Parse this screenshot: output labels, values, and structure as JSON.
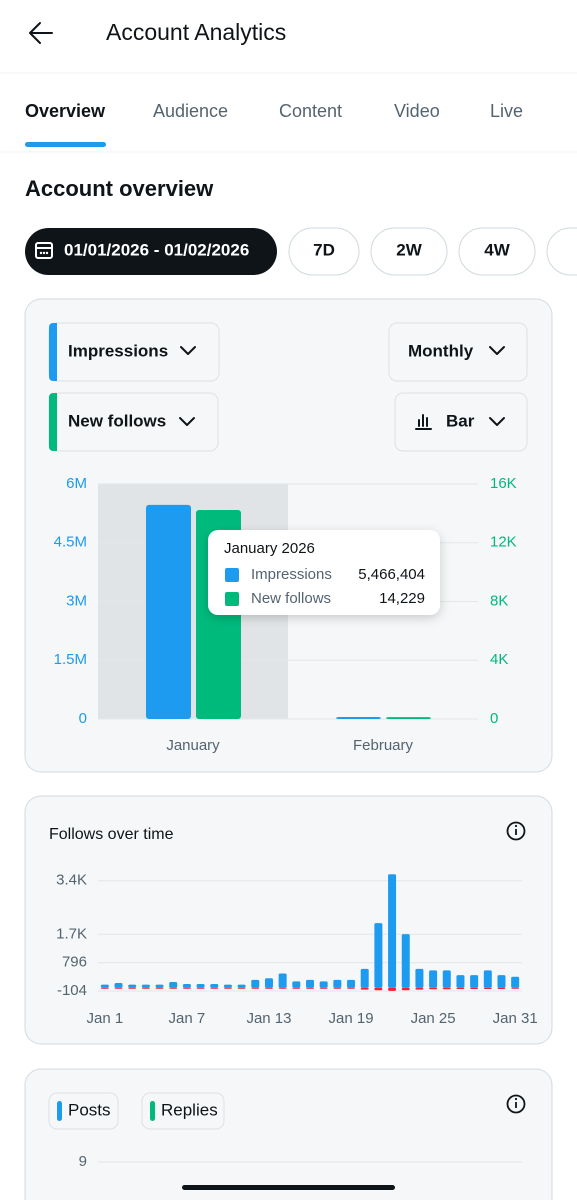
{
  "header": {
    "title": "Account Analytics"
  },
  "tabs": [
    "Overview",
    "Audience",
    "Content",
    "Video",
    "Live"
  ],
  "section_title": "Account overview",
  "date_range": "01/01/2026 - 01/02/2026",
  "range_options": [
    "7D",
    "2W",
    "4W"
  ],
  "controls": {
    "metric_1": "Impressions",
    "metric_2": "New follows",
    "period": "Monthly",
    "chart_style": "Bar"
  },
  "chart_data": [
    {
      "type": "bar",
      "categories": [
        "January",
        "February"
      ],
      "series": [
        {
          "name": "Impressions",
          "color": "#1d9bf0",
          "values": [
            5466404,
            50000
          ],
          "value_labels": [
            "5,466,404",
            null
          ]
        },
        {
          "name": "New follows",
          "color": "#00ba7c",
          "values": [
            14229,
            130
          ],
          "value_labels": [
            "14,229",
            null
          ],
          "axis": "y2"
        }
      ],
      "ylim": [
        0,
        6000000
      ],
      "yticks": [
        0,
        {
          "value": 1500000,
          "label": "1.5M"
        },
        {
          "value": 3000000,
          "label": "3M"
        },
        {
          "value": 4500000,
          "label": "4.5M"
        },
        {
          "value": 6000000,
          "label": "6M"
        }
      ],
      "y2lim": [
        0,
        16000
      ],
      "y2ticks": [
        0,
        {
          "value": 4000,
          "label": "4K"
        },
        {
          "value": 8000,
          "label": "8K"
        },
        {
          "value": 12000,
          "label": "12K"
        },
        {
          "value": 16000,
          "label": "16K"
        }
      ],
      "tooltip_title": "January 2026",
      "grid": true
    },
    {
      "type": "bar",
      "title": "Follows over time",
      "categories": [
        "Jan 1",
        null,
        null,
        null,
        null,
        null,
        "Jan 7",
        null,
        null,
        null,
        null,
        null,
        "Jan 13",
        null,
        null,
        null,
        null,
        null,
        "Jan 19",
        null,
        null,
        null,
        null,
        null,
        "Jan 25",
        null,
        null,
        null,
        null,
        null,
        "Jan 31"
      ],
      "series": [
        {
          "color": "#1d9bf0",
          "values": [
            100,
            150,
            100,
            100,
            100,
            180,
            120,
            120,
            120,
            100,
            100,
            250,
            300,
            450,
            200,
            250,
            200,
            250,
            250,
            600,
            2050,
            3600,
            1700,
            600,
            550,
            550,
            400,
            400,
            550,
            400,
            350
          ]
        },
        {
          "color": "#f4212e",
          "values": [
            -20,
            -20,
            -20,
            -20,
            -20,
            -20,
            -20,
            -20,
            -20,
            -20,
            -20,
            -20,
            -20,
            -20,
            -20,
            -20,
            -20,
            -20,
            -20,
            -60,
            -80,
            -100,
            -80,
            -60,
            -50,
            -50,
            -40,
            -40,
            -40,
            -40,
            -30
          ]
        }
      ],
      "ylim": [
        -104,
        3800
      ],
      "yticks": [
        -104,
        796,
        {
          "value": 1696,
          "label": "1.7K"
        },
        {
          "value": 3396,
          "label": "3.4K"
        }
      ],
      "grid": true
    },
    {
      "type": "bar",
      "series": [
        {
          "name": "Posts",
          "color": "#1d9bf0"
        },
        {
          "name": "Replies",
          "color": "#00ba7c"
        }
      ],
      "yticks": [
        9
      ],
      "grid": true
    }
  ]
}
